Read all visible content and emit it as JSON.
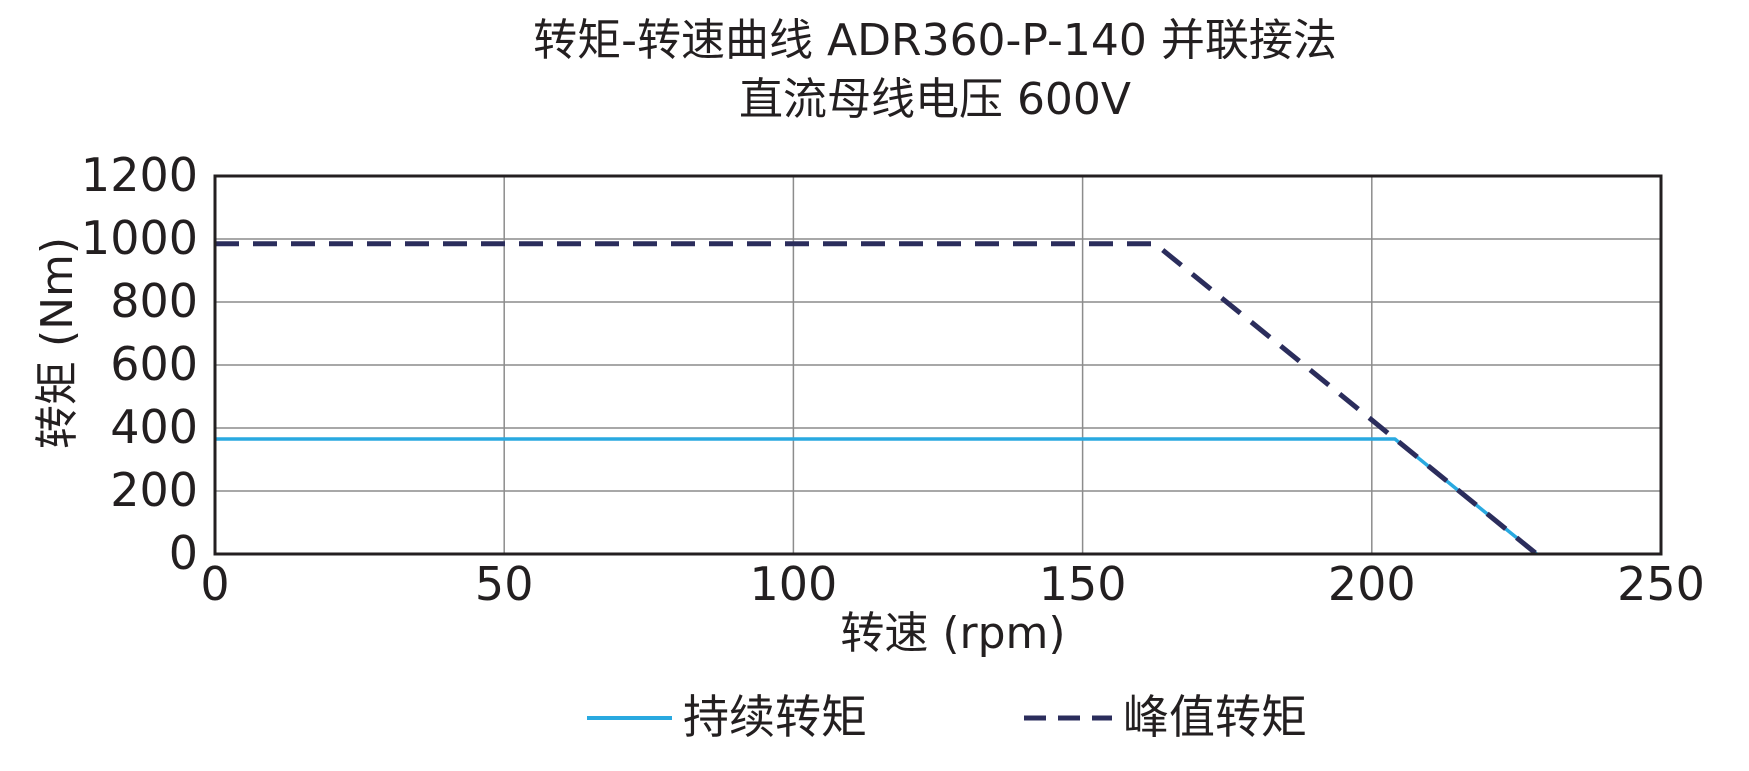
{
  "chart_data": {
    "type": "line",
    "title": "转矩-转速曲线 ADR360-P-140 并联接法",
    "subtitle": "直流母线电压 600V",
    "xlabel": "转速 (rpm)",
    "ylabel": "转矩 (Nm)",
    "xlim": [
      0,
      250
    ],
    "ylim": [
      0,
      1200
    ],
    "xticks": [
      0,
      50,
      100,
      150,
      200,
      250
    ],
    "yticks": [
      0,
      200,
      400,
      600,
      800,
      1000,
      1200
    ],
    "xtick_labels": [
      "0",
      "50",
      "100",
      "150",
      "200",
      "250"
    ],
    "ytick_labels": [
      "0",
      "200",
      "400",
      "600",
      "800",
      "1000",
      "1200"
    ],
    "grid": true,
    "legend_position": "bottom",
    "series": [
      {
        "name": "持续转矩",
        "style": "solid",
        "color": "#29a9e0",
        "x": [
          0,
          204,
          228.5
        ],
        "y": [
          365,
          365,
          0
        ]
      },
      {
        "name": "峰值转矩",
        "style": "dashed",
        "color": "#2b2d5c",
        "x": [
          0,
          162.5,
          228.5
        ],
        "y": [
          985,
          985,
          0
        ]
      }
    ]
  }
}
